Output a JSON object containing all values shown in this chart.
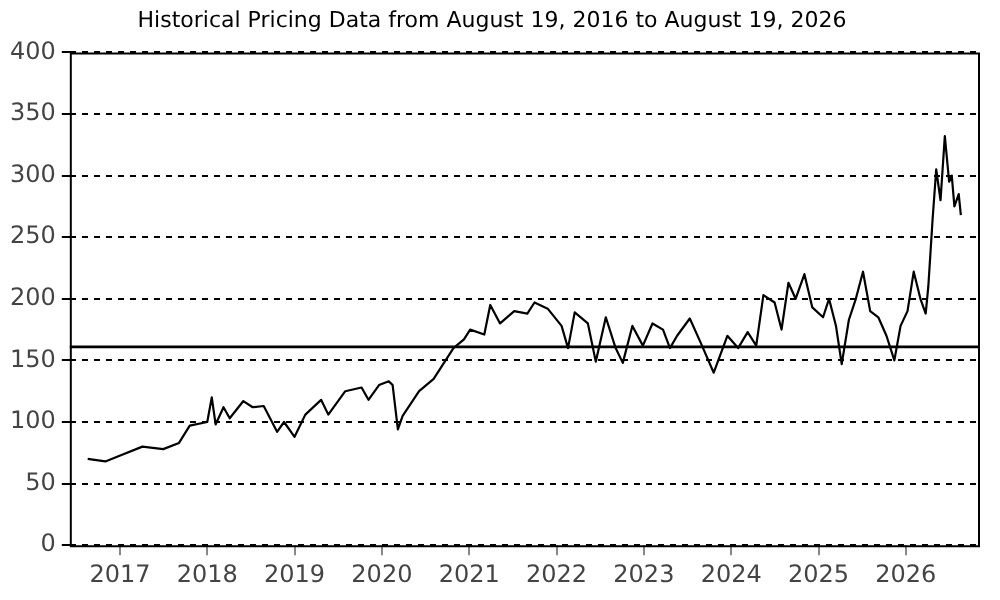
{
  "chart_data": {
    "type": "line",
    "title": "Historical Pricing Data from August 19, 2016 to August 19, 2026",
    "xlim": [
      "2016-06-05",
      "2026-11-07"
    ],
    "xticks": [
      {
        "value": "2017-01-01",
        "label": "2017"
      },
      {
        "value": "2018-01-01",
        "label": "2018"
      },
      {
        "value": "2019-01-01",
        "label": "2019"
      },
      {
        "value": "2020-01-01",
        "label": "2020"
      },
      {
        "value": "2021-01-01",
        "label": "2021"
      },
      {
        "value": "2022-01-01",
        "label": "2022"
      },
      {
        "value": "2023-01-01",
        "label": "2023"
      },
      {
        "value": "2024-01-01",
        "label": "2024"
      },
      {
        "value": "2025-01-01",
        "label": "2025"
      },
      {
        "value": "2026-01-01",
        "label": "2026"
      }
    ],
    "ylim": [
      0,
      400
    ],
    "yticks": [
      0,
      50,
      100,
      150,
      200,
      250,
      300,
      350,
      400
    ],
    "grid": "y",
    "legend": false,
    "marker": "none",
    "line_style": "solid",
    "ref_lines": [
      {
        "axis": "y",
        "value": 161,
        "color": "#000000",
        "line_style": "solid"
      }
    ],
    "series": [
      {
        "color": "#000000",
        "x": [
          "2016-08-19",
          "2016-11-01",
          "2017-01-05",
          "2017-04-05",
          "2017-07-01",
          "2017-09-05",
          "2017-10-20",
          "2018-01-01",
          "2018-01-20",
          "2018-02-05",
          "2018-03-10",
          "2018-04-05",
          "2018-06-01",
          "2018-07-10",
          "2018-08-25",
          "2018-10-20",
          "2018-11-18",
          "2019-01-01",
          "2019-02-15",
          "2019-04-22",
          "2019-05-22",
          "2019-08-01",
          "2019-10-08",
          "2019-11-06",
          "2019-12-20",
          "2020-01-30",
          "2020-02-15",
          "2020-03-08",
          "2020-03-28",
          "2020-06-05",
          "2020-08-05",
          "2020-10-27",
          "2020-12-10",
          "2021-01-05",
          "2021-03-05",
          "2021-03-30",
          "2021-05-10",
          "2021-07-08",
          "2021-09-01",
          "2021-10-01",
          "2021-11-25",
          "2022-01-22",
          "2022-02-18",
          "2022-03-18",
          "2022-05-12",
          "2022-06-14",
          "2022-07-26",
          "2022-09-05",
          "2022-10-05",
          "2022-11-14",
          "2022-12-28",
          "2023-02-06",
          "2023-03-22",
          "2023-04-20",
          "2023-05-20",
          "2023-07-12",
          "2023-08-25",
          "2023-10-20",
          "2023-12-16",
          "2024-01-30",
          "2024-03-10",
          "2024-04-15",
          "2024-05-15",
          "2024-07-01",
          "2024-07-30",
          "2024-08-28",
          "2024-09-27",
          "2024-11-03",
          "2024-12-06",
          "2025-01-20",
          "2025-02-14",
          "2025-03-15",
          "2025-04-08",
          "2025-05-08",
          "2025-06-06",
          "2025-07-06",
          "2025-08-05",
          "2025-09-08",
          "2025-10-12",
          "2025-11-14",
          "2025-12-10",
          "2026-01-08",
          "2026-02-03",
          "2026-03-03",
          "2026-03-25",
          "2026-04-05",
          "2026-04-23",
          "2026-05-08",
          "2026-05-26",
          "2026-06-13",
          "2026-07-01",
          "2026-07-12",
          "2026-07-23",
          "2026-08-10",
          "2026-08-19"
        ],
        "values": [
          70,
          68,
          73,
          80,
          78,
          83,
          97,
          100,
          120,
          98,
          112,
          103,
          117,
          112,
          113,
          92,
          100,
          88,
          106,
          118,
          106,
          125,
          128,
          118,
          130,
          133,
          130,
          94,
          105,
          125,
          135,
          160,
          167,
          175,
          171,
          195,
          180,
          190,
          188,
          197,
          192,
          178,
          160,
          189,
          180,
          149,
          185,
          160,
          148,
          178,
          162,
          180,
          175,
          160,
          170,
          184,
          165,
          140,
          170,
          160,
          173,
          162,
          203,
          197,
          175,
          213,
          200,
          220,
          193,
          185,
          200,
          178,
          147,
          183,
          200,
          222,
          190,
          185,
          170,
          150,
          178,
          190,
          222,
          200,
          188,
          210,
          265,
          305,
          280,
          332,
          295,
          300,
          275,
          285,
          268
        ]
      }
    ]
  }
}
